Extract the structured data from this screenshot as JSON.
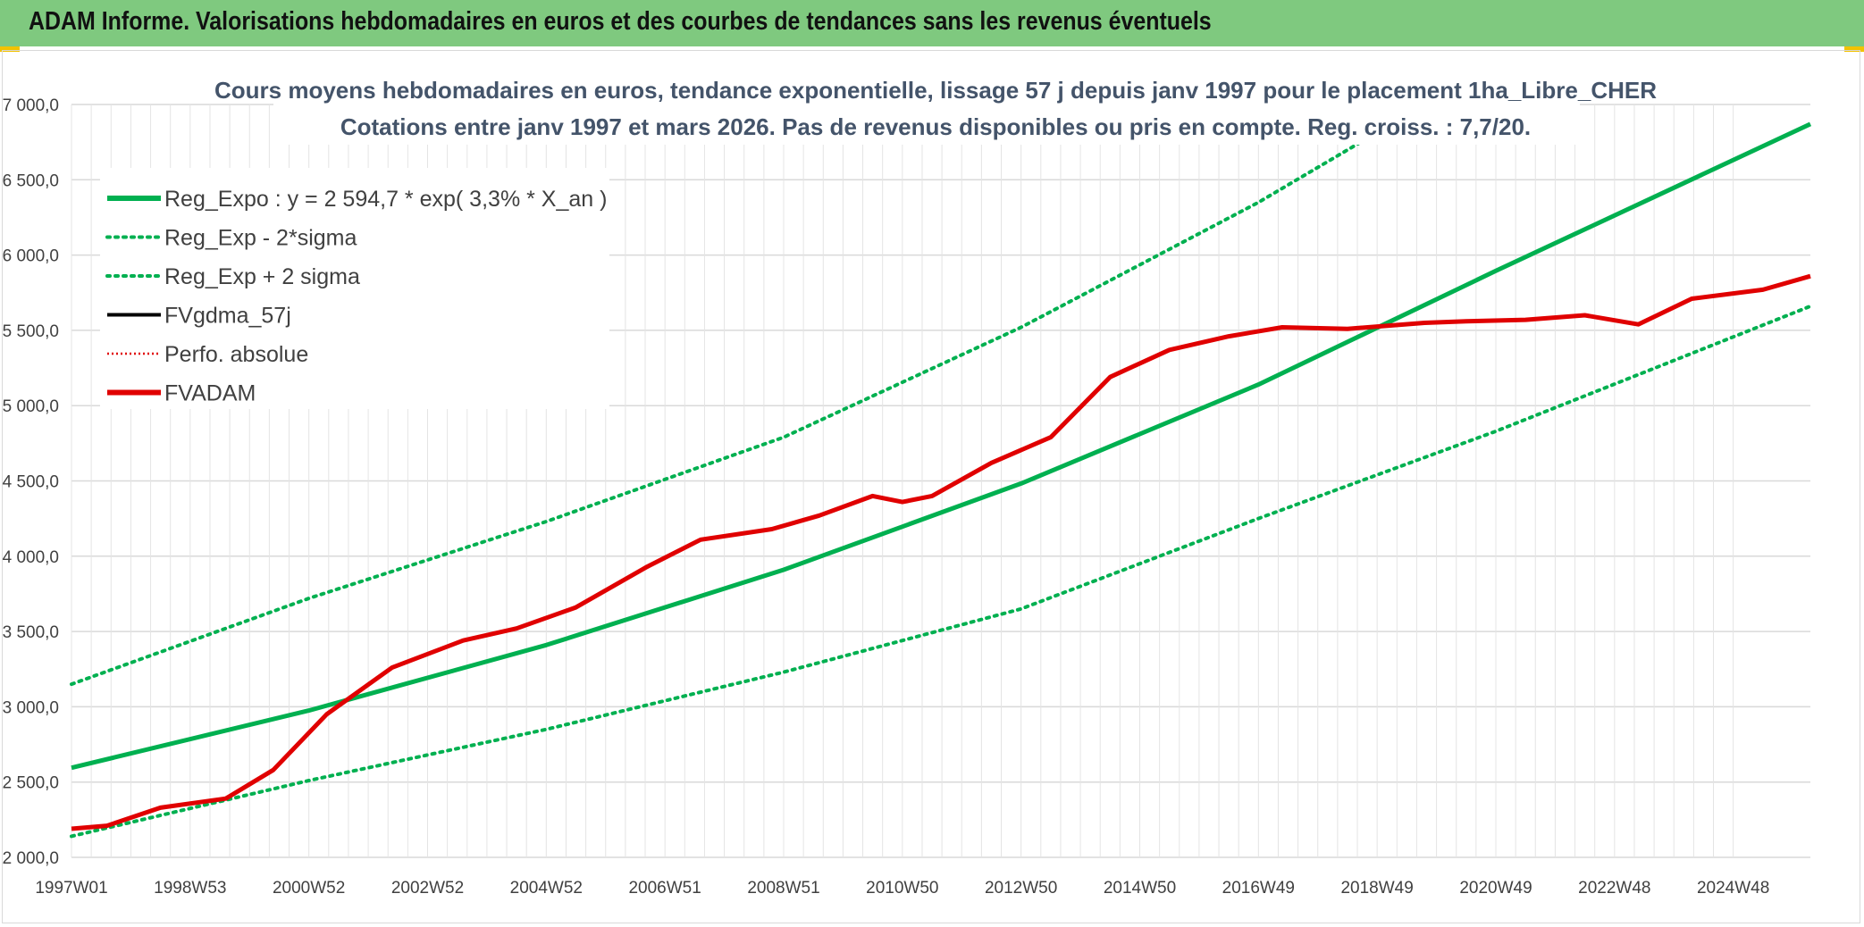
{
  "banner": {
    "title": "ADAM Informe. Valorisations hebdomadaires en euros et des courbes de tendances sans les revenus éventuels"
  },
  "colors": {
    "banner": "#7fc97f",
    "trend": "#00b050",
    "bands": "#00b050",
    "fv": "#e00000",
    "grid": "#d9d9d9",
    "subtitle": "#44546a"
  },
  "chart_data": {
    "type": "line",
    "subtitle_line1": "Cours moyens hebdomadaires en euros, tendance exponentielle, lissage 57 j depuis janv 1997 pour le placement 1ha_Libre_CHER",
    "subtitle_line2": "Cotations entre janv 1997 et mars 2026. Pas de revenus disponibles ou pris en compte. Reg. croiss. : 7,7/20.",
    "ylim": [
      2000,
      7000
    ],
    "xlim": [
      1997.0,
      2026.3
    ],
    "y_ticks": [
      "2 000,0",
      "2 500,0",
      "3 000,0",
      "3 500,0",
      "4 000,0",
      "4 500,0",
      "5 000,0",
      "5 500,0",
      "6 000,0",
      "6 500,0",
      "7 000,0"
    ],
    "x_ticks": [
      "1997W01",
      "1998W53",
      "2000W52",
      "2002W52",
      "2004W52",
      "2006W51",
      "2008W51",
      "2010W50",
      "2012W50",
      "2014W50",
      "2016W49",
      "2018W49",
      "2020W49",
      "2022W48",
      "2024W48"
    ],
    "grid": true,
    "legend_position": "top-left",
    "legend": [
      {
        "label": "Reg_Expo : y = 2 594,7 * exp( 3,3% *  X_an )",
        "color": "#00b050",
        "style": "solid-thick"
      },
      {
        "label": "Reg_Exp - 2*sigma",
        "color": "#00b050",
        "style": "dotted"
      },
      {
        "label": "Reg_Exp + 2 sigma",
        "color": "#00b050",
        "style": "dotted"
      },
      {
        "label": "FVgdma_57j",
        "color": "#000000",
        "style": "solid"
      },
      {
        "label": "Perfo. absolue",
        "color": "#e00000",
        "style": "dotted-thin"
      },
      {
        "label": "FVADAM",
        "color": "#e00000",
        "style": "solid-thick"
      }
    ],
    "series": [
      {
        "name": "Reg_Expo : y = 2 594,7 * exp( 3,3% *  X_an )",
        "x": [
          1997.0,
          2001.0,
          2005.0,
          2009.0,
          2013.0,
          2017.0,
          2021.0,
          2026.3
        ],
        "values": [
          2595,
          2975,
          3410,
          3910,
          4483,
          5140,
          5895,
          6870
        ]
      },
      {
        "name": "Reg_Exp - 2*sigma",
        "x": [
          1997.0,
          2001.0,
          2005.0,
          2009.0,
          2013.0,
          2017.0,
          2021.0,
          2026.3
        ],
        "values": [
          2140,
          2510,
          2850,
          3230,
          3650,
          4250,
          4830,
          5660
        ]
      },
      {
        "name": "Reg_Exp + 2 sigma",
        "x": [
          1997.0,
          2001.0,
          2005.0,
          2009.0,
          2013.0,
          2017.0,
          2019.8
        ],
        "values": [
          3150,
          3720,
          4230,
          4790,
          5520,
          6350,
          7000
        ]
      },
      {
        "name": "FVADAM",
        "x": [
          1997.0,
          1997.6,
          1998.5,
          1999.6,
          2000.4,
          2001.3,
          2002.4,
          2003.6,
          2004.5,
          2005.5,
          2006.7,
          2007.6,
          2008.8,
          2009.6,
          2010.5,
          2011.0,
          2011.5,
          2012.5,
          2013.5,
          2014.5,
          2015.5,
          2016.5,
          2017.4,
          2018.5,
          2019.8,
          2020.5,
          2021.5,
          2022.5,
          2023.4,
          2024.3,
          2025.5,
          2026.3
        ],
        "values": [
          2190,
          2210,
          2330,
          2390,
          2580,
          2950,
          3260,
          3440,
          3520,
          3660,
          3930,
          4110,
          4180,
          4270,
          4400,
          4360,
          4400,
          4620,
          4790,
          5190,
          5370,
          5460,
          5520,
          5510,
          5550,
          5560,
          5570,
          5600,
          5540,
          5710,
          5770,
          5860
        ]
      }
    ]
  }
}
